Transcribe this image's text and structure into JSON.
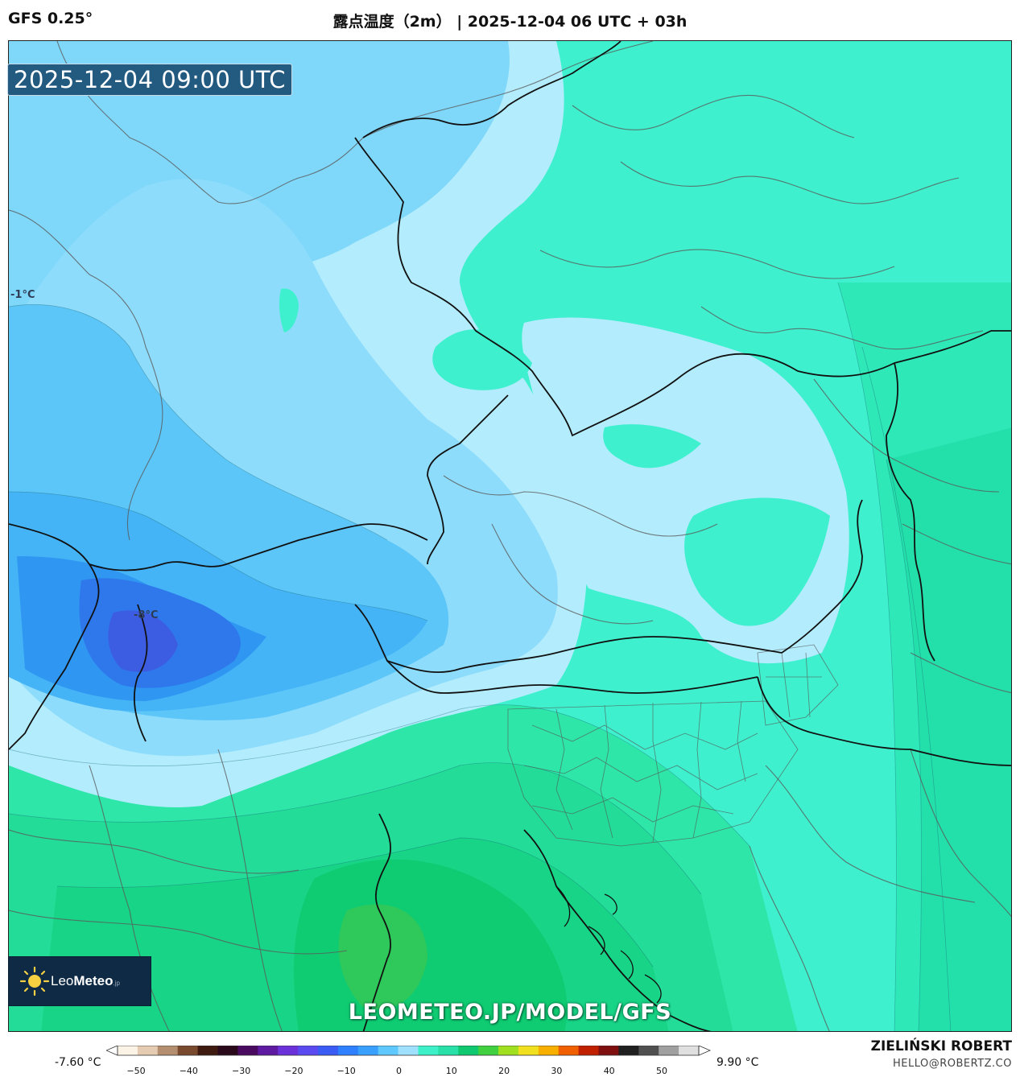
{
  "header": {
    "model": "GFS 0.25°",
    "title": "露点温度（2m） | 2025-12-04 06 UTC + 03h"
  },
  "map": {
    "valid_time": "2025-12-04 09:00 UTC",
    "labels": {
      "left_edge": "-1°C",
      "min_label": "-8°C"
    },
    "watermark": "LEOMETEO.JP/MODEL/GFS"
  },
  "logo": {
    "name_light": "Leo",
    "name_bold": "Meteo",
    "suffix": ".jp"
  },
  "colorbar": {
    "min_value": "-7.60 °C",
    "max_value": "9.90 °C",
    "ticks": [
      "−50",
      "−40",
      "−30",
      "−20",
      "−10",
      "0",
      "10",
      "20",
      "30",
      "40",
      "50"
    ],
    "colors": [
      "#fbf3e6",
      "#e4cbb1",
      "#b48f6f",
      "#7a4a2e",
      "#3e1a10",
      "#2a0a1a",
      "#4a0a60",
      "#5e1aa0",
      "#6a32d8",
      "#5a4af0",
      "#3a5cf5",
      "#2f80ff",
      "#3aa0ff",
      "#5ec8ff",
      "#9fe0ff",
      "#3ef0c8",
      "#28e0a8",
      "#10c870",
      "#40d040",
      "#a0e020",
      "#f0e020",
      "#f8b000",
      "#f06000",
      "#c02000",
      "#801010",
      "#202020",
      "#505050",
      "#a0a0a0",
      "#e0e0e0"
    ]
  },
  "footer": {
    "author": "ZIELIŃSKI ROBERT",
    "email": "HELLO@ROBERTZ.CO"
  }
}
